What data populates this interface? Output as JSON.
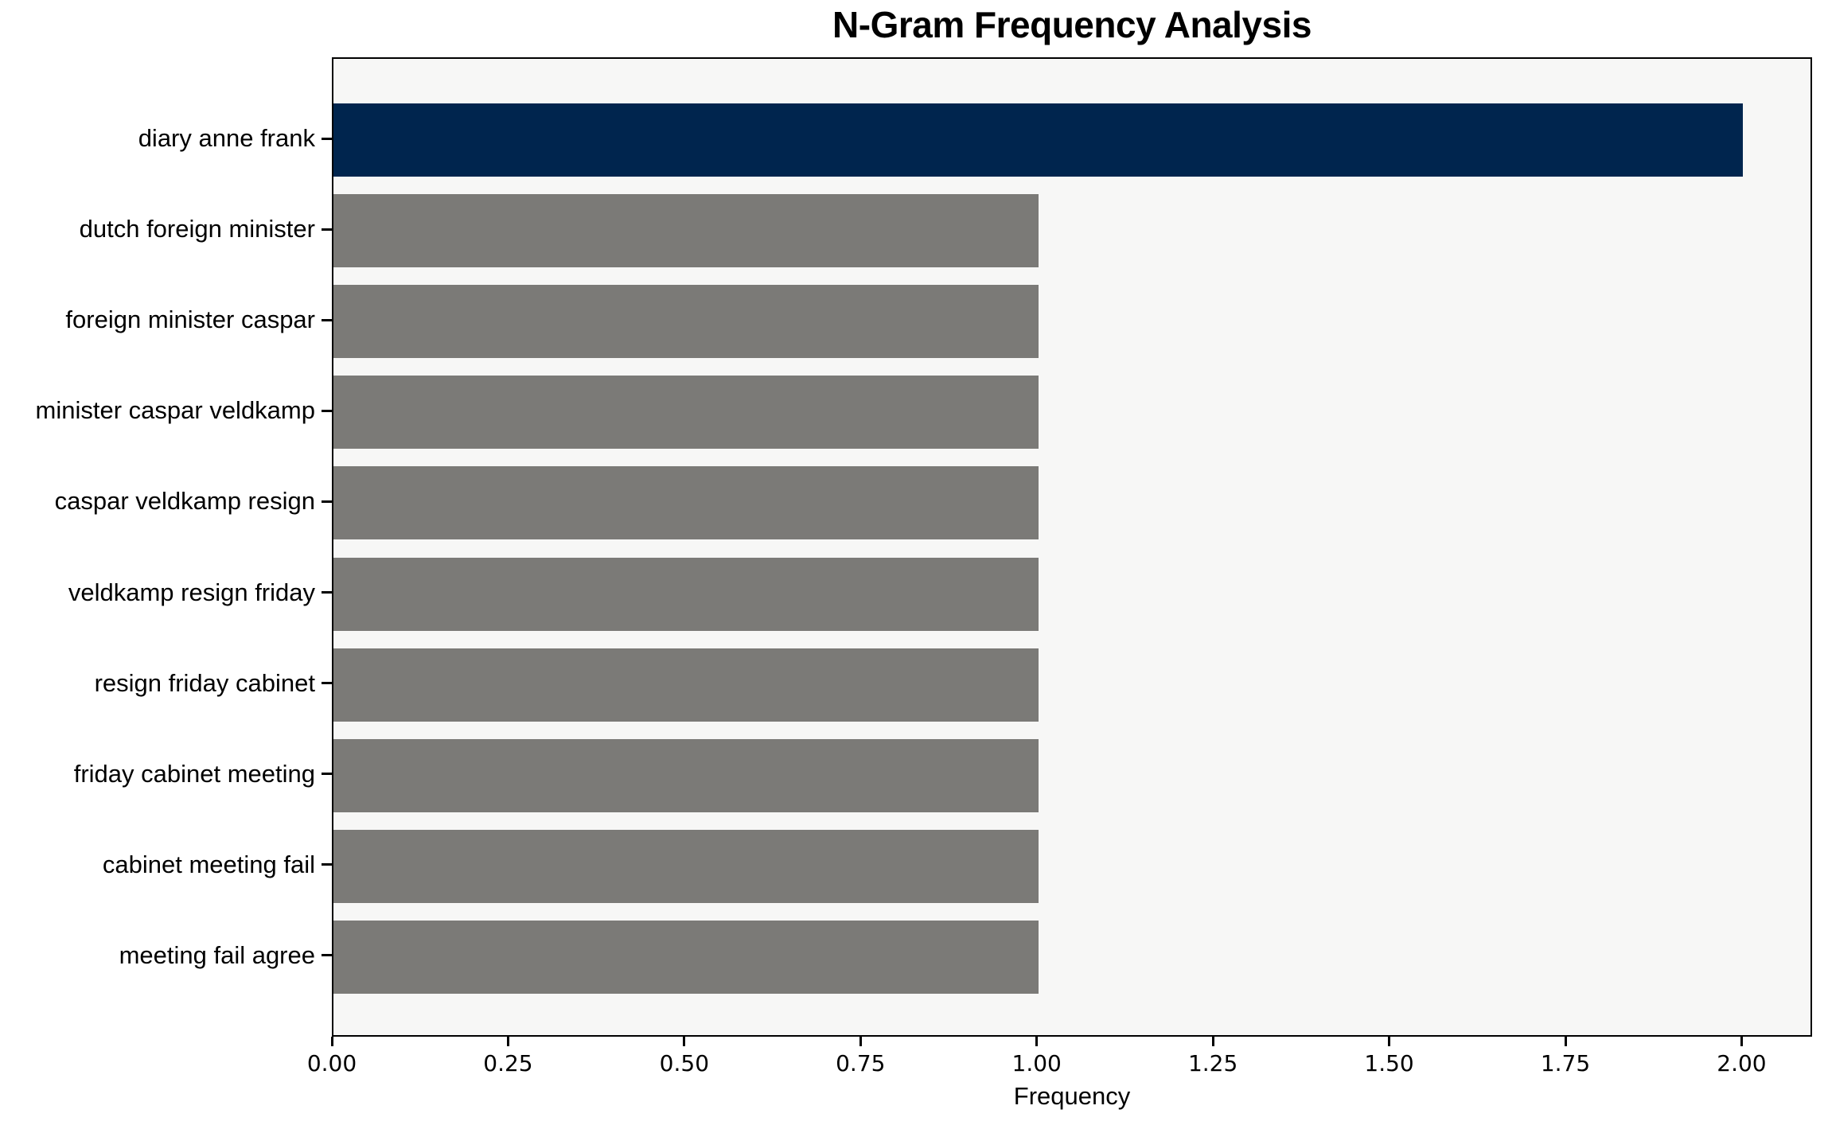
{
  "chart_data": {
    "type": "bar",
    "orientation": "horizontal",
    "title": "N-Gram Frequency Analysis",
    "xlabel": "Frequency",
    "ylabel": "",
    "categories": [
      "diary anne frank",
      "dutch foreign minister",
      "foreign minister caspar",
      "minister caspar veldkamp",
      "caspar veldkamp resign",
      "veldkamp resign friday",
      "resign friday cabinet",
      "friday cabinet meeting",
      "cabinet meeting fail",
      "meeting fail agree"
    ],
    "values": [
      2,
      1,
      1,
      1,
      1,
      1,
      1,
      1,
      1,
      1
    ],
    "bar_colors": [
      "#00254E",
      "#7B7A77",
      "#7B7A77",
      "#7B7A77",
      "#7B7A77",
      "#7B7A77",
      "#7B7A77",
      "#7B7A77",
      "#7B7A77",
      "#7B7A77"
    ],
    "xlim": [
      0,
      2.1
    ],
    "x_ticks": [
      "0.00",
      "0.25",
      "0.50",
      "0.75",
      "1.00",
      "1.25",
      "1.50",
      "1.75",
      "2.00"
    ],
    "x_tick_values": [
      0,
      0.25,
      0.5,
      0.75,
      1.0,
      1.25,
      1.5,
      1.75,
      2.0
    ],
    "grid": false,
    "legend": "none",
    "colors": {
      "highlight_bar": "#00254E",
      "default_bar": "#7B7A77",
      "plot_background": "#F7F7F6",
      "figure_background": "#FFFFFF",
      "axis": "#000000"
    }
  }
}
